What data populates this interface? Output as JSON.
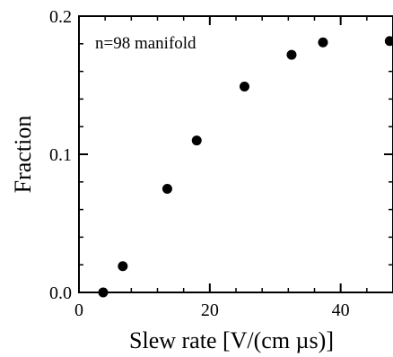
{
  "chart_data": {
    "type": "scatter",
    "xlabel": "Slew rate [V/(cm µs)]",
    "ylabel": "Fraction",
    "annotation": "n=98 manifold",
    "xlim": [
      0,
      48
    ],
    "ylim": [
      0,
      0.2
    ],
    "xticks": [
      0,
      20,
      40
    ],
    "xtick_labels": [
      "0",
      "20",
      "40"
    ],
    "yticks": [
      0,
      0.1,
      0.2
    ],
    "ytick_labels": [
      "0.0",
      "0.1",
      "0.2"
    ],
    "x_minor_step": 4,
    "y_minor_step": 0.02,
    "grid": false,
    "marker_color": "#000000",
    "series": [
      {
        "x": [
          3.7,
          6.7,
          13.5,
          18.0,
          25.3,
          32.5,
          37.3,
          47.5
        ],
        "y": [
          0.0,
          0.019,
          0.075,
          0.11,
          0.149,
          0.172,
          0.181,
          0.182
        ]
      }
    ]
  }
}
